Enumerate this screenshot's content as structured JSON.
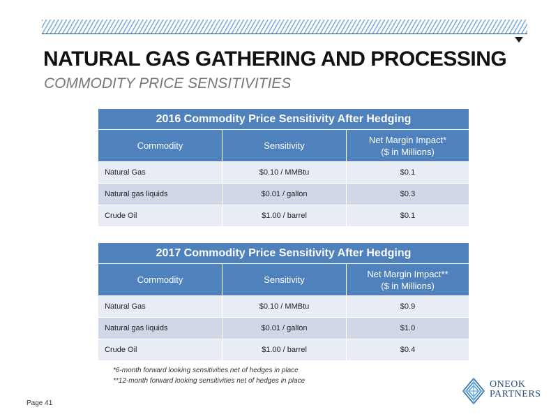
{
  "header": {
    "title": "NATURAL GAS GATHERING AND PROCESSING",
    "subtitle": "COMMODITY PRICE SENSITIVITIES"
  },
  "tables": [
    {
      "caption": "2016 Commodity Price Sensitivity After Hedging",
      "columns": [
        "Commodity",
        "Sensitivity",
        "Net Margin Impact*",
        "($ in Millions)"
      ],
      "rows": [
        {
          "commodity": "Natural Gas",
          "sensitivity": "$0.10 / MMBtu",
          "impact": "$0.1"
        },
        {
          "commodity": "Natural gas liquids",
          "sensitivity": "$0.01 / gallon",
          "impact": "$0.3"
        },
        {
          "commodity": "Crude Oil",
          "sensitivity": "$1.00 / barrel",
          "impact": "$0.1"
        }
      ]
    },
    {
      "caption": "2017 Commodity Price Sensitivity After Hedging",
      "columns": [
        "Commodity",
        "Sensitivity",
        "Net Margin Impact**",
        "($ in Millions)"
      ],
      "rows": [
        {
          "commodity": "Natural Gas",
          "sensitivity": "$0.10 / MMBtu",
          "impact": "$0.9"
        },
        {
          "commodity": "Natural gas liquids",
          "sensitivity": "$0.01 / gallon",
          "impact": "$1.0"
        },
        {
          "commodity": "Crude Oil",
          "sensitivity": "$1.00 / barrel",
          "impact": "$0.4"
        }
      ]
    }
  ],
  "footnotes": [
    "*6-month forward looking sensitivities net of hedges in place",
    "**12-month forward looking sensitivities net of hedges in place"
  ],
  "footer": {
    "page": "Page 41",
    "logo_line1": "ONEOK",
    "logo_line2": "PARTNERS"
  },
  "colors": {
    "header_blue": "#4f81bd",
    "row_light": "#e8ecf4",
    "row_dark": "#d0d8e8",
    "brand_navy": "#2a4f7a"
  },
  "icons": [
    "hatch-decoration",
    "triangle-down-icon",
    "oneok-logo-icon"
  ]
}
